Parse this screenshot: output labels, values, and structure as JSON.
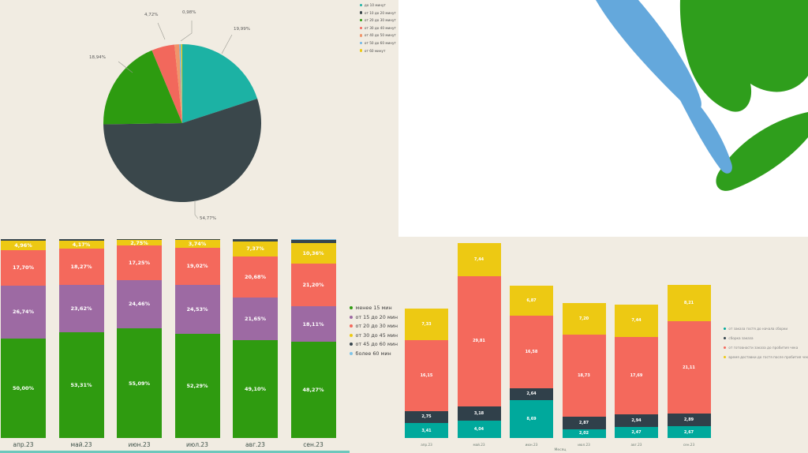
{
  "colors": {
    "background": "#f1ece2",
    "panel_white": "#ffffff",
    "logo_green": "#2f9e1c",
    "logo_blue": "#64a8dc",
    "bottom_strip": "#00a99c"
  },
  "chart_data": [
    {
      "id": "delivery-time-share-pie",
      "type": "pie",
      "legend_position": "top-right",
      "slices": [
        {
          "label": "до 10 минут",
          "value": 19.99,
          "display": "19,99%",
          "color": "#1cb2a4",
          "estimated": false
        },
        {
          "label": "от 10 до 20 минут",
          "value": 54.77,
          "display": "54,77%",
          "color": "#3a474b",
          "estimated": false
        },
        {
          "label": "от 20 до 30 минут",
          "value": 18.94,
          "display": "18,94%",
          "color": "#2d9b10",
          "estimated": false
        },
        {
          "label": "от 30 до 40 минут",
          "value": 4.72,
          "display": "4,72%",
          "color": "#f2685c",
          "estimated": false
        },
        {
          "label": "от 40 до 50 минут",
          "value": 0.98,
          "display": "0,98%",
          "color": "#f0956a",
          "estimated": false
        },
        {
          "label": "от 50 до 60 минут",
          "value": 0.35,
          "display": "",
          "color": "#6fb7e8",
          "estimated": true
        },
        {
          "label": "от 60 минут",
          "value": 0.25,
          "display": "",
          "color": "#edc913",
          "estimated": true
        }
      ]
    },
    {
      "id": "delivery-time-share-by-month",
      "type": "bar",
      "stacked": true,
      "unit": "%",
      "ylim": [
        0,
        100
      ],
      "categories": [
        "апр.23",
        "май.23",
        "июн.23",
        "июл.23",
        "авг.23",
        "сен.23"
      ],
      "series": [
        {
          "name": "менее 15 мин",
          "color": "#2f9b10",
          "show_labels": true,
          "values": [
            50.0,
            53.31,
            55.09,
            52.29,
            49.1,
            48.27
          ]
        },
        {
          "name": "от 15 до 20 мин",
          "color": "#9d6aa3",
          "show_labels": true,
          "values": [
            26.74,
            23.62,
            24.46,
            24.53,
            21.65,
            18.11
          ]
        },
        {
          "name": "от 20 до 30 мин",
          "color": "#f4695c",
          "show_labels": true,
          "values": [
            17.7,
            18.27,
            17.25,
            19.02,
            20.68,
            21.2
          ]
        },
        {
          "name": "от 30 до 45 мин",
          "color": "#edc913",
          "show_labels": true,
          "values": [
            4.96,
            4.17,
            2.75,
            3.74,
            7.37,
            10.36
          ]
        },
        {
          "name": "от 45 до 60 мин",
          "color": "#36454d",
          "show_labels": false,
          "values": [
            0.6,
            0.63,
            0.45,
            0.42,
            1.2,
            1.56
          ],
          "estimated": true
        },
        {
          "name": "более 60 мин",
          "color": "#7fc4e8",
          "show_labels": false,
          "values": [
            0,
            0,
            0,
            0,
            0,
            0.5
          ],
          "estimated": true
        }
      ],
      "legend": [
        {
          "label": "менее 15 мин",
          "color": "#2f9b10"
        },
        {
          "label": "от 15 до 20 мин",
          "color": "#9d6aa3"
        },
        {
          "label": "от 20 до 30 мин",
          "color": "#f4695c"
        },
        {
          "label": "от 30 до 45 мин",
          "color": "#edc913"
        },
        {
          "label": "от 45 до 60 мин",
          "color": "#36454d"
        },
        {
          "label": "более 60 мин",
          "color": "#7fc4e8"
        }
      ]
    },
    {
      "id": "delivery-stage-minutes-by-month",
      "type": "bar",
      "stacked": true,
      "xlabel": "Месяц",
      "categories": [
        "апр.23",
        "май.23",
        "июн.23",
        "июл.23",
        "авг.23",
        "сен.23"
      ],
      "series": [
        {
          "name": "от заказа гостя до начала сборки",
          "color": "#00a99c",
          "show_labels": true,
          "values": [
            3.41,
            4.04,
            8.69,
            2.02,
            2.47,
            2.67
          ]
        },
        {
          "name": "сборка заказа",
          "color": "#30404a",
          "show_labels": true,
          "values": [
            2.75,
            3.18,
            2.64,
            2.87,
            2.94,
            2.89
          ]
        },
        {
          "name": "от готовности заказа до пробития чека",
          "color": "#f4695c",
          "show_labels": true,
          "values": [
            16.15,
            29.81,
            16.58,
            18.73,
            17.69,
            21.11
          ]
        },
        {
          "name": "время доставки до гостя после пробития чека",
          "color": "#edc913",
          "show_labels": true,
          "values": [
            7.33,
            7.44,
            6.87,
            7.2,
            7.44,
            8.21
          ]
        }
      ],
      "legend": [
        {
          "label": "от заказа гостя до начала сборки",
          "color": "#00a99c"
        },
        {
          "label": "сборка заказа",
          "color": "#30404a"
        },
        {
          "label": "от готовности заказа до пробития чека",
          "color": "#f4695c"
        },
        {
          "label": "время доставки до гостя после пробития чека",
          "color": "#edc913"
        }
      ]
    }
  ]
}
